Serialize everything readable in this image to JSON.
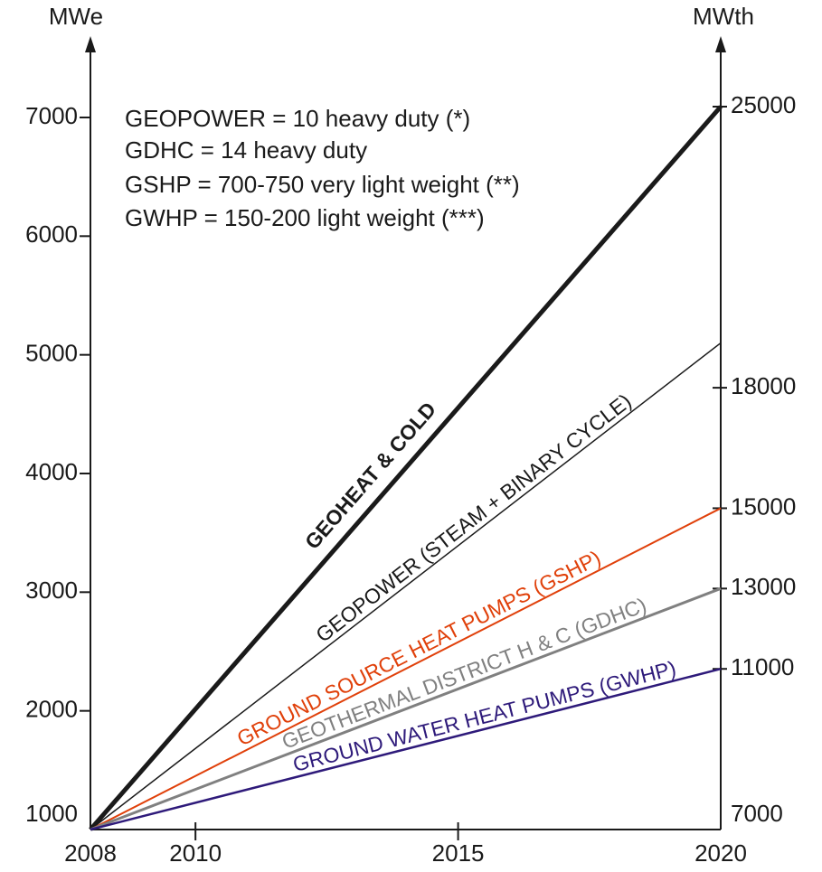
{
  "chart_data": {
    "type": "line",
    "ylabel": "MWe",
    "y2label": "MWth",
    "annotations": [
      "GEOPOWER = 10 heavy duty (*)",
      "GDHC = 14 heavy duty",
      "GSHP = 700-750 very light weight (**)",
      "GWHP = 150-200 light weight (***)"
    ],
    "x": [
      2008,
      2020
    ],
    "xlim": [
      2008,
      2020
    ],
    "xticks": [
      2008,
      2010,
      2015,
      2020
    ],
    "ylim": [
      1000,
      7000
    ],
    "yticks": [
      1000,
      2000,
      3000,
      4000,
      5000,
      6000,
      7000
    ],
    "y2lim": [
      7000,
      25000
    ],
    "y2ticks": [
      7000,
      11000,
      13000,
      15000,
      18000,
      25000
    ],
    "series": [
      {
        "name": "GEOHEAT & COLD",
        "color": "#1a1a1a",
        "values": [
          7000,
          25000
        ],
        "axis": "y2"
      },
      {
        "name": "GEOPOWER (STEAM + BINARY CYCLE)",
        "color": "#1a1a1a",
        "values": [
          1000,
          5100
        ]
      },
      {
        "name": "GROUND SOURCE HEAT PUMPS (GSHP)",
        "color": "#e0400a",
        "values": [
          7000,
          15000
        ],
        "axis": "y2"
      },
      {
        "name": "GEOTHERMAL DISTRICT H & C (GDHC)",
        "color": "#808080",
        "values": [
          7000,
          13000
        ],
        "axis": "y2"
      },
      {
        "name": "GROUND WATER HEAT PUMPS (GWHP)",
        "color": "#2e1a7a",
        "values": [
          7000,
          11000
        ],
        "axis": "y2"
      }
    ]
  }
}
